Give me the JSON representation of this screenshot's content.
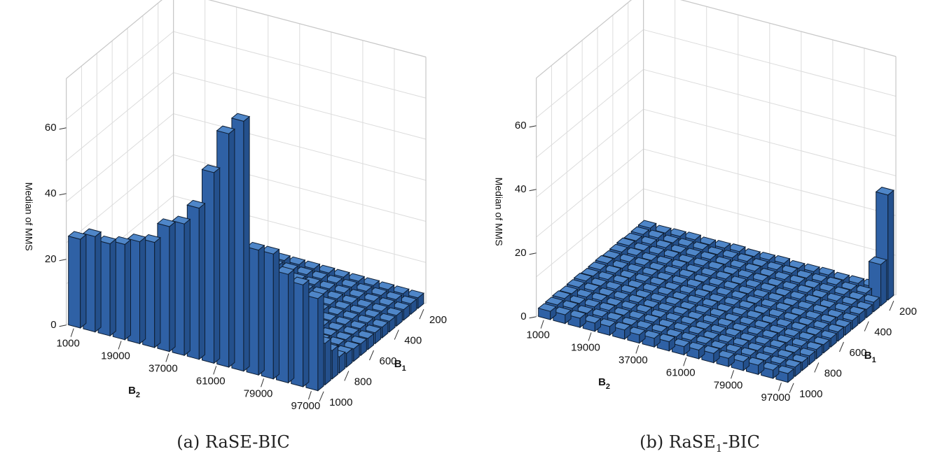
{
  "chart_data": [
    {
      "type": "bar3d",
      "caption": "(a) RaSE-BIC",
      "zlabel": "Median of MMS",
      "xlabel": "B",
      "xlabel_sub": "2",
      "ylabel": "B",
      "ylabel_sub": "1",
      "x_ticks": [
        "1000",
        "19000",
        "37000",
        "61000",
        "79000",
        "97000"
      ],
      "y_ticks": [
        "200",
        "400",
        "600",
        "800",
        "1000"
      ],
      "z_ticks": [
        "0",
        "20",
        "40",
        "60"
      ],
      "zlim": [
        0,
        75
      ],
      "grid_dims": [
        17,
        15
      ],
      "front_row_heights": [
        27,
        29,
        28,
        29,
        31,
        32,
        38,
        40,
        46,
        58,
        71,
        76,
        38,
        38,
        33,
        31,
        28
      ]
    },
    {
      "type": "bar3d",
      "caption": "(b) RaSE",
      "caption_sub": "1",
      "caption_suffix": "-BIC",
      "zlabel": "Median of MMS",
      "xlabel": "B",
      "xlabel_sub": "2",
      "ylabel": "B",
      "ylabel_sub": "1",
      "x_ticks": [
        "1000",
        "19000",
        "37000",
        "61000",
        "79000",
        "97000"
      ],
      "y_ticks": [
        "200",
        "400",
        "600",
        "800",
        "1000"
      ],
      "z_ticks": [
        "0",
        "20",
        "40",
        "60"
      ],
      "zlim": [
        0,
        75
      ],
      "grid_dims": [
        17,
        15
      ],
      "peak_heights": [
        3,
        13,
        33
      ]
    }
  ]
}
